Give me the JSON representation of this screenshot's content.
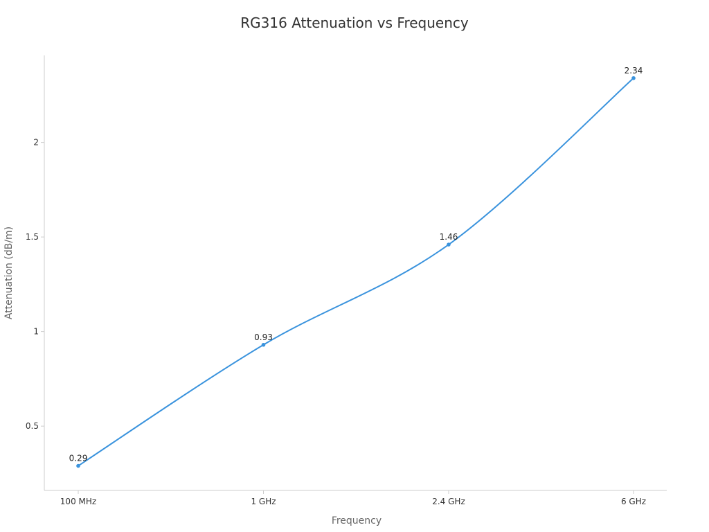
{
  "chart_data": {
    "type": "line",
    "title": "RG316 Attenuation vs Frequency",
    "xlabel": "Frequency",
    "ylabel": "Attenuation (dB/m)",
    "categories": [
      "100 MHz",
      "1 GHz",
      "2.4 GHz",
      "6 GHz"
    ],
    "series": [
      {
        "values": [
          0.29,
          0.93,
          1.46,
          2.34
        ],
        "color": "#3a93dd"
      }
    ],
    "data_labels": [
      "0.29",
      "0.93",
      "1.46",
      "2.34"
    ],
    "yticks": [
      0.5,
      1,
      1.5,
      2
    ],
    "ytick_labels": [
      "0.5",
      "1",
      "1.5",
      "2"
    ],
    "ylim": [
      0.16,
      2.46
    ],
    "grid": false,
    "smooth": true,
    "axis_color": "#cccccc"
  }
}
